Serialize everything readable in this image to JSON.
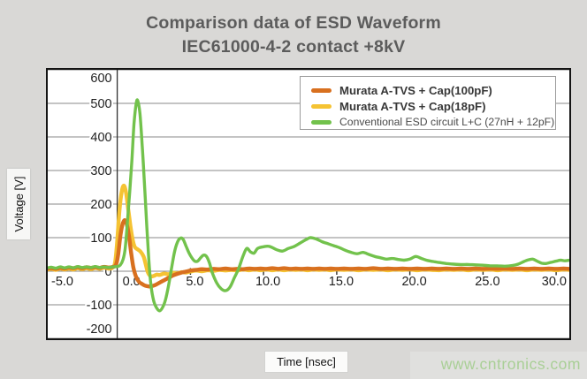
{
  "title": {
    "line1": "Comparison data of ESD Waveform",
    "line2": "IEC61000-4-2 contact +8kV"
  },
  "watermark": {
    "text": "www.cntronics.com",
    "color": "#a9cf96"
  },
  "colors": {
    "background": "#d9d8d6",
    "plot_background": "#ffffff",
    "plot_border": "#141414",
    "gridline": "#8a8a8a",
    "axis_line": "#303030",
    "tick_text": "#1f1f1f",
    "title_text": "#5c5c5c"
  },
  "chart_data": {
    "type": "line",
    "title": "Comparison data of ESD Waveform IEC61000-4-2 contact +8kV",
    "xlabel": "Time [nsec]",
    "ylabel": "Voltage [V]",
    "xlim": [
      -4.75,
      30.9
    ],
    "ylim": [
      -200,
      600
    ],
    "x_ticks": [
      -5,
      0,
      5,
      10,
      15,
      20,
      25,
      30
    ],
    "x_tick_labels": [
      "-5.0",
      "0.0",
      "5.0",
      "10.0",
      "15.0",
      "20.0",
      "25.0",
      "30.0"
    ],
    "y_ticks": [
      600,
      500,
      400,
      300,
      200,
      100,
      0,
      -100,
      -200
    ],
    "y_tick_labels": [
      "600",
      "500",
      "400",
      "300",
      "200",
      "100",
      "0",
      "-100",
      "-200"
    ],
    "grid": true,
    "legend_position": "top-right",
    "draw_order": [
      1,
      0,
      2
    ],
    "series": [
      {
        "name": "Murata A-TVS + Cap(100pF)",
        "color": "#d8701f",
        "line_width": 4.4,
        "points": [
          [
            -4.75,
            8
          ],
          [
            -4.5,
            9
          ],
          [
            -4.2,
            7
          ],
          [
            -3.9,
            10
          ],
          [
            -3.6,
            8
          ],
          [
            -3.3,
            11
          ],
          [
            -3.0,
            9
          ],
          [
            -2.7,
            12
          ],
          [
            -2.4,
            9
          ],
          [
            -2.1,
            12
          ],
          [
            -1.8,
            10
          ],
          [
            -1.5,
            12
          ],
          [
            -1.2,
            10
          ],
          [
            -0.9,
            13
          ],
          [
            -0.6,
            11
          ],
          [
            -0.3,
            13
          ],
          [
            -0.1,
            18
          ],
          [
            0.05,
            45
          ],
          [
            0.2,
            100
          ],
          [
            0.35,
            138
          ],
          [
            0.5,
            152
          ],
          [
            0.65,
            140
          ],
          [
            0.8,
            105
          ],
          [
            0.95,
            55
          ],
          [
            1.1,
            12
          ],
          [
            1.3,
            -18
          ],
          [
            1.5,
            -32
          ],
          [
            1.7,
            -38
          ],
          [
            1.9,
            -43
          ],
          [
            2.1,
            -45
          ],
          [
            2.3,
            -45
          ],
          [
            2.6,
            -41
          ],
          [
            2.9,
            -34
          ],
          [
            3.2,
            -27
          ],
          [
            3.5,
            -20
          ],
          [
            3.8,
            -13
          ],
          [
            4.1,
            -8
          ],
          [
            4.4,
            -4
          ],
          [
            4.7,
            -1
          ],
          [
            5.0,
            2
          ],
          [
            5.4,
            4
          ],
          [
            5.8,
            6
          ],
          [
            6.2,
            5
          ],
          [
            6.6,
            7
          ],
          [
            7.0,
            6
          ],
          [
            7.4,
            8
          ],
          [
            7.8,
            6
          ],
          [
            8.2,
            7
          ],
          [
            8.6,
            6
          ],
          [
            9.0,
            8
          ],
          [
            9.4,
            7
          ],
          [
            9.8,
            8
          ],
          [
            10.2,
            7
          ],
          [
            10.6,
            9
          ],
          [
            11.0,
            7
          ],
          [
            11.4,
            9
          ],
          [
            11.8,
            7
          ],
          [
            12.2,
            8
          ],
          [
            12.6,
            7
          ],
          [
            13.0,
            8
          ],
          [
            13.4,
            7
          ],
          [
            13.8,
            8
          ],
          [
            14.2,
            7
          ],
          [
            14.6,
            8
          ],
          [
            15.0,
            7
          ],
          [
            15.5,
            8
          ],
          [
            16.0,
            7
          ],
          [
            16.5,
            8
          ],
          [
            17.0,
            7
          ],
          [
            17.5,
            9
          ],
          [
            18.0,
            7
          ],
          [
            18.5,
            8
          ],
          [
            19.0,
            7
          ],
          [
            19.5,
            8
          ],
          [
            20.0,
            7
          ],
          [
            20.5,
            8
          ],
          [
            21.0,
            7
          ],
          [
            21.5,
            8
          ],
          [
            22.0,
            7
          ],
          [
            22.5,
            8
          ],
          [
            23.0,
            7
          ],
          [
            23.5,
            8
          ],
          [
            24.0,
            7
          ],
          [
            24.5,
            8
          ],
          [
            25.0,
            7
          ],
          [
            25.5,
            8
          ],
          [
            26.0,
            7
          ],
          [
            26.5,
            8
          ],
          [
            27.0,
            7
          ],
          [
            27.5,
            8
          ],
          [
            28.0,
            7
          ],
          [
            28.5,
            8
          ],
          [
            29.0,
            7
          ],
          [
            29.5,
            8
          ],
          [
            30.0,
            7
          ],
          [
            30.5,
            8
          ],
          [
            30.9,
            7
          ]
        ]
      },
      {
        "name": "Murata A-TVS + Cap(18pF)",
        "color": "#f5c333",
        "line_width": 4.4,
        "points": [
          [
            -4.75,
            5
          ],
          [
            -4.5,
            7
          ],
          [
            -4.2,
            4
          ],
          [
            -3.9,
            8
          ],
          [
            -3.6,
            5
          ],
          [
            -3.3,
            8
          ],
          [
            -3.0,
            5
          ],
          [
            -2.7,
            9
          ],
          [
            -2.4,
            6
          ],
          [
            -2.1,
            9
          ],
          [
            -1.8,
            6
          ],
          [
            -1.5,
            10
          ],
          [
            -1.2,
            7
          ],
          [
            -0.9,
            11
          ],
          [
            -0.6,
            8
          ],
          [
            -0.35,
            10
          ],
          [
            -0.15,
            25
          ],
          [
            0.0,
            90
          ],
          [
            0.15,
            180
          ],
          [
            0.3,
            235
          ],
          [
            0.45,
            255
          ],
          [
            0.6,
            235
          ],
          [
            0.75,
            185
          ],
          [
            0.9,
            135
          ],
          [
            1.05,
            95
          ],
          [
            1.2,
            72
          ],
          [
            1.4,
            65
          ],
          [
            1.6,
            58
          ],
          [
            1.8,
            44
          ],
          [
            1.95,
            20
          ],
          [
            2.1,
            -4
          ],
          [
            2.3,
            -15
          ],
          [
            2.5,
            -14
          ],
          [
            2.7,
            -10
          ],
          [
            2.9,
            -11
          ],
          [
            3.2,
            -7
          ],
          [
            3.5,
            -9
          ],
          [
            3.8,
            -5
          ],
          [
            4.1,
            -6
          ],
          [
            4.4,
            -3
          ],
          [
            4.7,
            -4
          ],
          [
            5.0,
            -1
          ],
          [
            5.4,
            2
          ],
          [
            5.8,
            0
          ],
          [
            6.2,
            3
          ],
          [
            6.6,
            1
          ],
          [
            7.0,
            4
          ],
          [
            7.4,
            2
          ],
          [
            7.8,
            4
          ],
          [
            8.2,
            2
          ],
          [
            8.6,
            5
          ],
          [
            9.0,
            3
          ],
          [
            9.4,
            5
          ],
          [
            9.8,
            3
          ],
          [
            10.2,
            5
          ],
          [
            10.6,
            3
          ],
          [
            11.0,
            5
          ],
          [
            11.4,
            3
          ],
          [
            11.8,
            5
          ],
          [
            12.2,
            4
          ],
          [
            12.6,
            5
          ],
          [
            13.0,
            3
          ],
          [
            13.4,
            5
          ],
          [
            13.8,
            4
          ],
          [
            14.2,
            5
          ],
          [
            14.6,
            3
          ],
          [
            15.0,
            5
          ],
          [
            15.5,
            4
          ],
          [
            16.0,
            5
          ],
          [
            16.5,
            3
          ],
          [
            17.0,
            5
          ],
          [
            17.5,
            4
          ],
          [
            18.0,
            5
          ],
          [
            18.5,
            3
          ],
          [
            19.0,
            5
          ],
          [
            19.5,
            4
          ],
          [
            20.0,
            5
          ],
          [
            20.5,
            3
          ],
          [
            21.0,
            5
          ],
          [
            21.5,
            4
          ],
          [
            22.0,
            3
          ],
          [
            22.5,
            5
          ],
          [
            23.0,
            4
          ],
          [
            23.5,
            5
          ],
          [
            24.0,
            3
          ],
          [
            24.5,
            5
          ],
          [
            25.0,
            4
          ],
          [
            25.5,
            5
          ],
          [
            26.0,
            3
          ],
          [
            26.5,
            5
          ],
          [
            27.0,
            4
          ],
          [
            27.5,
            5
          ],
          [
            28.0,
            3
          ],
          [
            28.5,
            5
          ],
          [
            29.0,
            4
          ],
          [
            29.5,
            5
          ],
          [
            30.0,
            3
          ],
          [
            30.5,
            5
          ],
          [
            30.9,
            4
          ]
        ]
      },
      {
        "name": "Conventional ESD circuit L+C (27nH + 12pF)",
        "color": "#72c24c",
        "line_width": 3.4,
        "points": [
          [
            -4.75,
            10
          ],
          [
            -4.5,
            12
          ],
          [
            -4.2,
            9
          ],
          [
            -3.9,
            13
          ],
          [
            -3.6,
            10
          ],
          [
            -3.3,
            13
          ],
          [
            -3.0,
            10
          ],
          [
            -2.7,
            14
          ],
          [
            -2.4,
            11
          ],
          [
            -2.1,
            13
          ],
          [
            -1.8,
            11
          ],
          [
            -1.5,
            14
          ],
          [
            -1.2,
            11
          ],
          [
            -0.9,
            13
          ],
          [
            -0.6,
            11
          ],
          [
            -0.3,
            13
          ],
          [
            0.0,
            14
          ],
          [
            0.2,
            18
          ],
          [
            0.4,
            35
          ],
          [
            0.55,
            70
          ],
          [
            0.7,
            150
          ],
          [
            0.85,
            235
          ],
          [
            1.0,
            330
          ],
          [
            1.15,
            440
          ],
          [
            1.3,
            500
          ],
          [
            1.4,
            508
          ],
          [
            1.55,
            470
          ],
          [
            1.7,
            380
          ],
          [
            1.85,
            270
          ],
          [
            2.0,
            150
          ],
          [
            2.15,
            40
          ],
          [
            2.3,
            -40
          ],
          [
            2.5,
            -90
          ],
          [
            2.7,
            -110
          ],
          [
            2.9,
            -118
          ],
          [
            3.1,
            -108
          ],
          [
            3.3,
            -85
          ],
          [
            3.5,
            -45
          ],
          [
            3.7,
            5
          ],
          [
            3.9,
            55
          ],
          [
            4.1,
            85
          ],
          [
            4.3,
            98
          ],
          [
            4.5,
            95
          ],
          [
            4.7,
            75
          ],
          [
            4.9,
            55
          ],
          [
            5.1,
            40
          ],
          [
            5.3,
            30
          ],
          [
            5.5,
            30
          ],
          [
            5.7,
            40
          ],
          [
            5.9,
            48
          ],
          [
            6.1,
            44
          ],
          [
            6.3,
            25
          ],
          [
            6.5,
            -5
          ],
          [
            6.8,
            -35
          ],
          [
            7.1,
            -52
          ],
          [
            7.4,
            -58
          ],
          [
            7.7,
            -48
          ],
          [
            8.0,
            -20
          ],
          [
            8.3,
            8
          ],
          [
            8.6,
            45
          ],
          [
            8.85,
            68
          ],
          [
            9.1,
            58
          ],
          [
            9.35,
            54
          ],
          [
            9.6,
            68
          ],
          [
            10.0,
            73
          ],
          [
            10.4,
            74
          ],
          [
            10.9,
            64
          ],
          [
            11.3,
            60
          ],
          [
            11.7,
            68
          ],
          [
            12.1,
            74
          ],
          [
            12.5,
            84
          ],
          [
            12.9,
            94
          ],
          [
            13.2,
            100
          ],
          [
            13.6,
            96
          ],
          [
            14.0,
            88
          ],
          [
            14.4,
            82
          ],
          [
            14.8,
            76
          ],
          [
            15.2,
            70
          ],
          [
            15.6,
            62
          ],
          [
            16.0,
            56
          ],
          [
            16.4,
            52
          ],
          [
            16.8,
            56
          ],
          [
            17.2,
            50
          ],
          [
            17.6,
            44
          ],
          [
            18.0,
            40
          ],
          [
            18.4,
            36
          ],
          [
            18.8,
            38
          ],
          [
            19.2,
            35
          ],
          [
            19.6,
            33
          ],
          [
            20.0,
            36
          ],
          [
            20.4,
            44
          ],
          [
            20.8,
            38
          ],
          [
            21.2,
            32
          ],
          [
            21.6,
            29
          ],
          [
            22.0,
            26
          ],
          [
            22.5,
            23
          ],
          [
            23.0,
            21
          ],
          [
            23.5,
            20
          ],
          [
            24.0,
            20
          ],
          [
            24.5,
            19
          ],
          [
            25.0,
            18
          ],
          [
            25.5,
            16
          ],
          [
            26.0,
            16
          ],
          [
            26.5,
            15
          ],
          [
            27.0,
            17
          ],
          [
            27.4,
            21
          ],
          [
            27.8,
            29
          ],
          [
            28.1,
            34
          ],
          [
            28.4,
            36
          ],
          [
            28.7,
            30
          ],
          [
            29.0,
            24
          ],
          [
            29.3,
            23
          ],
          [
            29.6,
            26
          ],
          [
            30.0,
            30
          ],
          [
            30.3,
            33
          ],
          [
            30.6,
            31
          ],
          [
            30.9,
            33
          ]
        ]
      }
    ]
  }
}
